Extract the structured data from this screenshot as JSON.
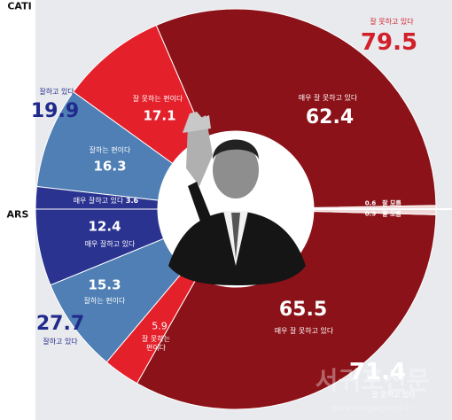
{
  "chart_data": {
    "type": "pie",
    "subtype": "split-donut",
    "colors": {
      "very_bad": "#8b1218",
      "bad": "#e4202b",
      "good": "#4f7fb4",
      "very_good": "#2b3390",
      "background_left": "#e9eaee"
    },
    "survey_labels": {
      "top": "CATI",
      "bottom": "ARS"
    },
    "cati": {
      "totals": {
        "bad": {
          "label": "잘 못하고 있다",
          "value": "79.5"
        },
        "good": {
          "label": "잘하고 있다",
          "value": "19.9"
        }
      },
      "segments": [
        {
          "label": "매우 잘 못하고 있다",
          "value": "62.4"
        },
        {
          "label": "잘 못하는 편이다",
          "value": "17.1"
        },
        {
          "label": "잘하는 편이다",
          "value": "16.3"
        },
        {
          "label": "매우 잘하고 있다",
          "value": "3.6"
        },
        {
          "label": "잘 모름",
          "value": "0.6"
        }
      ]
    },
    "ars": {
      "totals": {
        "bad": {
          "label": "잘 못하고 있다",
          "value": "71.4"
        },
        "good": {
          "label": "잘하고 있다",
          "value": "27.7"
        }
      },
      "segments": [
        {
          "label": "매우 잘하고 있다",
          "value": "12.4"
        },
        {
          "label": "잘하는 편이다",
          "value": "15.3"
        },
        {
          "label": "잘 못하는",
          "label2": "편이다",
          "value": "5.9"
        },
        {
          "label": "매우 잘 못하고 있다",
          "value": "65.5"
        },
        {
          "label": "잘 모름",
          "value": "0.9"
        }
      ]
    },
    "watermark": "서귀포신문",
    "watermark_url": "www.seogwipo.co.kr"
  }
}
